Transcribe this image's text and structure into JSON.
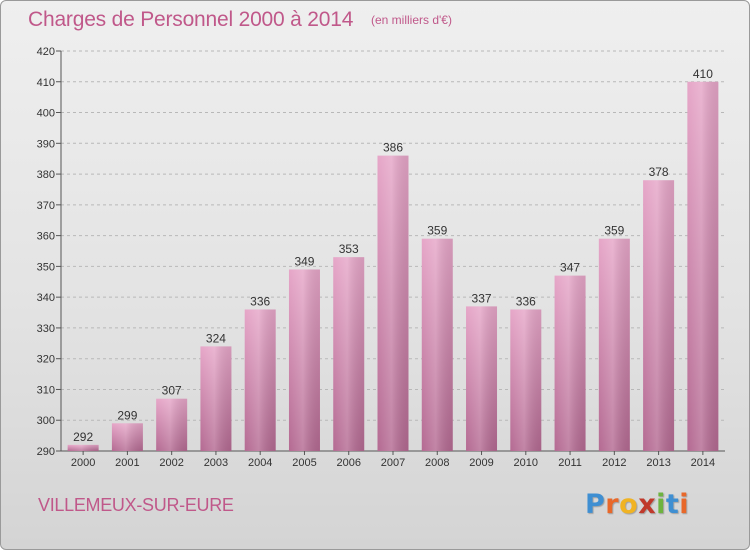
{
  "title": "Charges de Personnel 2000 à 2014",
  "subtitle": "(en milliers d'€)",
  "city": "VILLEMEUX-SUR-EURE",
  "brand": {
    "letters": [
      "P",
      "r",
      "o",
      "x",
      "i",
      "t",
      "i"
    ],
    "colors": [
      "#3f8fd2",
      "#e8682a",
      "#f0b323",
      "#c0392b",
      "#6db33f",
      "#3f8fd2",
      "#e8682a"
    ]
  },
  "colors": {
    "bar_top": "#e6a6c8",
    "bar_bottom": "#b46a92",
    "accent": "#c0588a",
    "text": "#333333"
  },
  "chart_data": {
    "type": "bar",
    "title": "Charges de Personnel 2000 à 2014",
    "subtitle": "(en milliers d'€)",
    "categories": [
      "2000",
      "2001",
      "2002",
      "2003",
      "2004",
      "2005",
      "2006",
      "2007",
      "2008",
      "2009",
      "2010",
      "2011",
      "2012",
      "2013",
      "2014"
    ],
    "values": [
      292,
      299,
      307,
      324,
      336,
      349,
      353,
      386,
      359,
      337,
      336,
      347,
      359,
      378,
      410
    ],
    "ylim": [
      290,
      420
    ],
    "yticks": [
      290,
      300,
      310,
      320,
      330,
      340,
      350,
      360,
      370,
      380,
      390,
      400,
      410,
      420
    ],
    "grid": true,
    "xlabel": "",
    "ylabel": ""
  }
}
